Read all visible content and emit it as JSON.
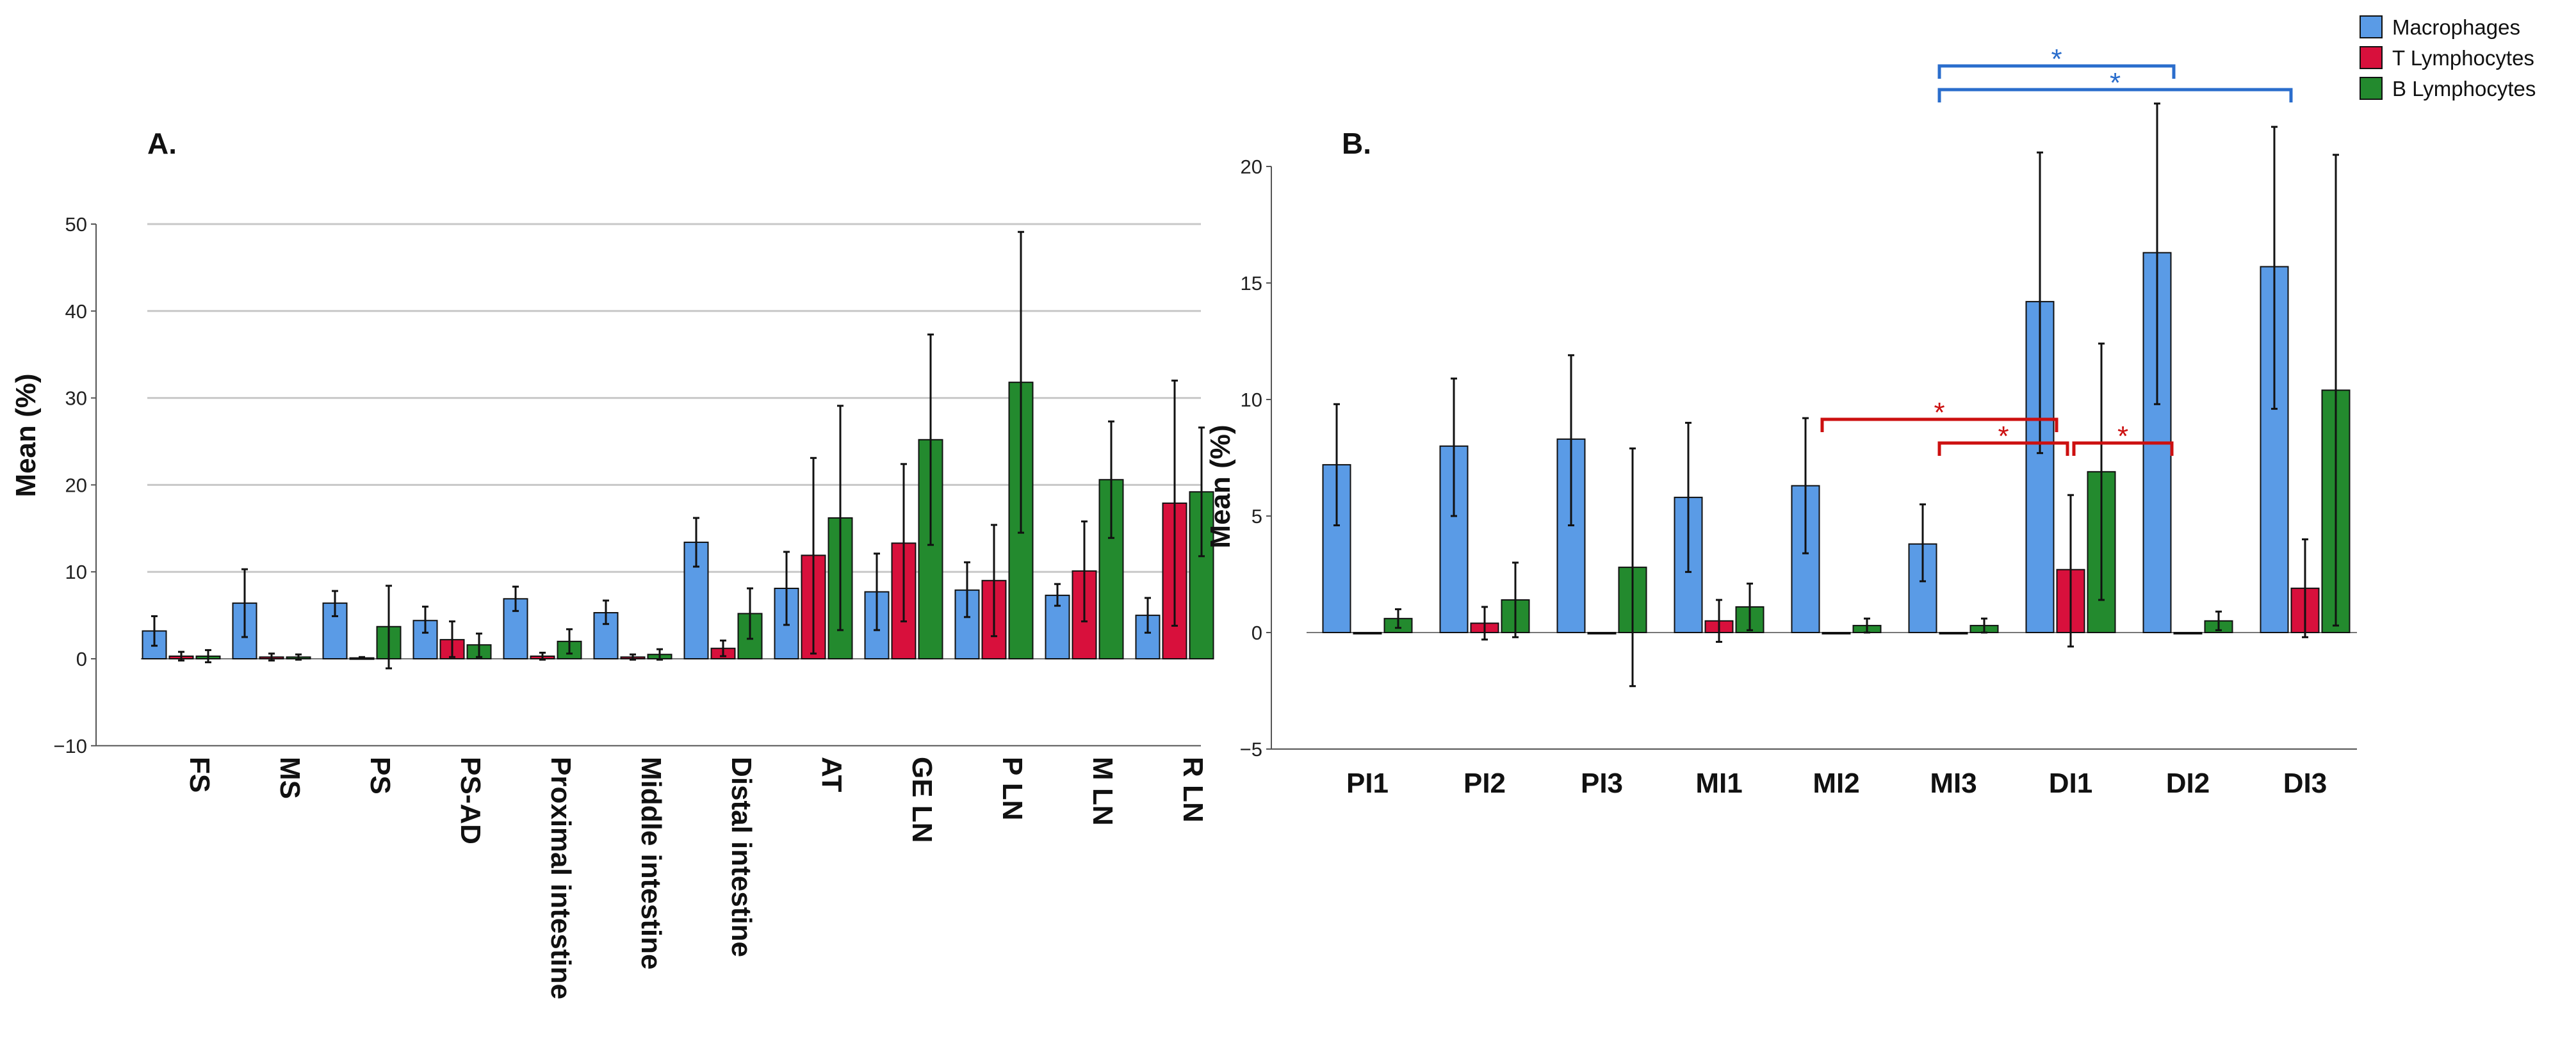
{
  "colors": {
    "Macrophages": "#5a9be6",
    "T Lymphocytes": "#d8103c",
    "B Lymphocytes": "#238a2e",
    "sig_blue": "#2a6dcc",
    "sig_red": "#cc1010",
    "grid": "#c8c8c8"
  },
  "legend": [
    "Macrophages",
    "T Lymphocytes",
    "B Lymphocytes"
  ],
  "chart_data": [
    {
      "panel_label": "A.",
      "type": "bar",
      "ylabel": "Mean (%)",
      "ylim": [
        -10,
        50
      ],
      "yticks": [
        -10,
        0,
        10,
        20,
        30,
        40,
        50
      ],
      "grid": true,
      "categories": [
        "FS",
        "MS",
        "PS",
        "PS-AD",
        "Proximal intestine",
        "Middle intestine",
        "Distal intestine",
        "AT",
        "GE LN",
        "P LN",
        "M LN",
        "R LN"
      ],
      "series": [
        {
          "name": "Macrophages",
          "values": [
            3.2,
            6.4,
            6.4,
            4.4,
            6.9,
            5.3,
            13.4,
            8.1,
            7.7,
            7.9,
            7.3,
            5.0
          ],
          "err": [
            [
              1.5,
              4.9
            ],
            [
              2.5,
              10.3
            ],
            [
              4.9,
              7.8
            ],
            [
              3.0,
              6.0
            ],
            [
              5.5,
              8.3
            ],
            [
              4.0,
              6.7
            ],
            [
              10.6,
              16.2
            ],
            [
              3.9,
              12.3
            ],
            [
              3.3,
              12.1
            ],
            [
              4.8,
              11.1
            ],
            [
              6.1,
              8.6
            ],
            [
              3.0,
              7.0
            ]
          ]
        },
        {
          "name": "T Lymphocytes",
          "values": [
            0.3,
            0.2,
            0.1,
            2.2,
            0.3,
            0.2,
            1.2,
            11.9,
            13.3,
            9.0,
            10.1,
            17.9
          ],
          "err": [
            [
              -0.2,
              0.8
            ],
            [
              -0.2,
              0.6
            ],
            [
              0.0,
              0.2
            ],
            [
              0.2,
              4.3
            ],
            [
              -0.1,
              0.7
            ],
            [
              -0.1,
              0.5
            ],
            [
              0.3,
              2.1
            ],
            [
              0.6,
              23.1
            ],
            [
              4.3,
              22.4
            ],
            [
              2.6,
              15.4
            ],
            [
              4.3,
              15.8
            ],
            [
              3.8,
              32.0
            ]
          ]
        },
        {
          "name": "B Lymphocytes",
          "values": [
            0.3,
            0.2,
            3.7,
            1.6,
            2.0,
            0.5,
            5.2,
            16.2,
            25.2,
            31.8,
            20.6,
            19.2
          ],
          "err": [
            [
              -0.4,
              1.0
            ],
            [
              -0.1,
              0.5
            ],
            [
              -1.1,
              8.4
            ],
            [
              0.2,
              2.9
            ],
            [
              0.6,
              3.4
            ],
            [
              -0.1,
              1.1
            ],
            [
              2.3,
              8.1
            ],
            [
              3.3,
              29.1
            ],
            [
              13.1,
              37.3
            ],
            [
              14.5,
              49.1
            ],
            [
              13.9,
              27.3
            ],
            [
              11.8,
              26.6
            ]
          ]
        }
      ]
    },
    {
      "panel_label": "B.",
      "type": "bar",
      "ylabel": "Mean (%)",
      "ylim": [
        -5,
        22
      ],
      "yticks": [
        -5,
        0,
        5,
        10,
        15,
        20
      ],
      "grid": false,
      "categories": [
        "PI1",
        "PI2",
        "PI3",
        "MI1",
        "MI2",
        "MI3",
        "DI1",
        "DI2",
        "DI3"
      ],
      "series": [
        {
          "name": "Macrophages",
          "values": [
            7.2,
            8.0,
            8.3,
            5.8,
            6.3,
            3.8,
            14.2,
            16.3,
            15.7
          ],
          "err": [
            [
              4.6,
              9.8
            ],
            [
              5.0,
              10.9
            ],
            [
              4.6,
              11.9
            ],
            [
              2.6,
              9.0
            ],
            [
              3.4,
              9.2
            ],
            [
              2.2,
              5.5
            ],
            [
              7.7,
              20.6
            ],
            [
              9.8,
              22.7
            ],
            [
              9.6,
              21.7
            ]
          ]
        },
        {
          "name": "T Lymphocytes",
          "values": [
            0.0,
            0.4,
            0.0,
            0.5,
            0.0,
            0.0,
            2.7,
            0.0,
            1.9
          ],
          "err": [
            [
              0.0,
              0.0
            ],
            [
              -0.3,
              1.1
            ],
            [
              0.0,
              0.0
            ],
            [
              -0.4,
              1.4
            ],
            [
              0.0,
              0.0
            ],
            [
              0.0,
              0.0
            ],
            [
              -0.6,
              5.9
            ],
            [
              0.0,
              0.0
            ],
            [
              -0.2,
              4.0
            ]
          ]
        },
        {
          "name": "B Lymphocytes",
          "values": [
            0.6,
            1.4,
            2.8,
            1.1,
            0.3,
            0.3,
            6.9,
            0.5,
            10.4
          ],
          "err": [
            [
              0.2,
              1.0
            ],
            [
              -0.2,
              3.0
            ],
            [
              -2.3,
              7.9
            ],
            [
              0.1,
              2.1
            ],
            [
              0.0,
              0.6
            ],
            [
              0.0,
              0.6
            ],
            [
              1.4,
              12.4
            ],
            [
              0.1,
              0.9
            ],
            [
              0.3,
              20.5
            ]
          ]
        }
      ],
      "annotations": [
        {
          "label": "*",
          "color": "blue",
          "from": "MI3",
          "to": "DI2"
        },
        {
          "label": "*",
          "color": "blue",
          "from": "MI3",
          "to": "DI3"
        },
        {
          "label": "*",
          "color": "red",
          "from": "MI2",
          "to": "DI1"
        },
        {
          "label": "*",
          "color": "red",
          "from": "MI3",
          "to": "DI1"
        },
        {
          "label": "*",
          "color": "red",
          "from": "DI1",
          "to": "DI2"
        }
      ]
    }
  ]
}
